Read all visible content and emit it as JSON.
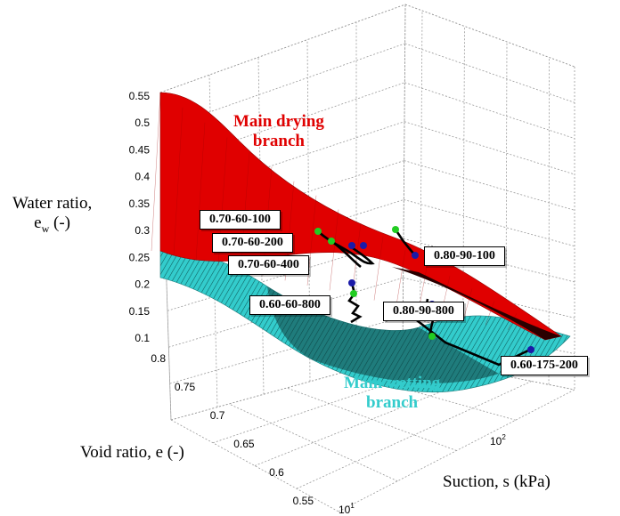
{
  "chart_data": {
    "type": "surface",
    "title": "",
    "axes": {
      "z": {
        "label": "Water ratio,",
        "label_line2": "e",
        "label_sub": "w",
        "label_unit": " (-)",
        "range": [
          0.1,
          0.55
        ],
        "ticks": [
          "0.1",
          "0.15",
          "0.2",
          "0.25",
          "0.3",
          "0.35",
          "0.4",
          "0.45",
          "0.5",
          "0.55"
        ]
      },
      "y": {
        "label": "Void ratio, e (-)",
        "range": [
          0.55,
          0.8
        ],
        "ticks": [
          "0.55",
          "0.6",
          "0.65",
          "0.7",
          "0.75",
          "0.8"
        ]
      },
      "x": {
        "label": "Suction, s (kPa)",
        "scale": "log",
        "ticks": [
          {
            "base": "10",
            "exp": "1"
          },
          {
            "base": "10",
            "exp": "2"
          }
        ]
      }
    },
    "grid": true,
    "surfaces": [
      {
        "name": "Main drying branch",
        "label_line1": "Main drying",
        "label_line2": "branch",
        "color": "#e00000"
      },
      {
        "name": "Main wetting branch",
        "label_line1": "Main wetting",
        "label_line2": "branch",
        "color": "#33cccc"
      }
    ],
    "paths": [
      {
        "label": "0.70-60-100"
      },
      {
        "label": "0.70-60-200"
      },
      {
        "label": "0.70-60-400"
      },
      {
        "label": "0.60-60-800"
      },
      {
        "label": "0.80-90-100"
      },
      {
        "label": "0.80-90-800"
      },
      {
        "label": "0.60-175-200"
      }
    ],
    "marker_colors": {
      "start": "#22cc22",
      "end": "#1a1aa8"
    }
  }
}
